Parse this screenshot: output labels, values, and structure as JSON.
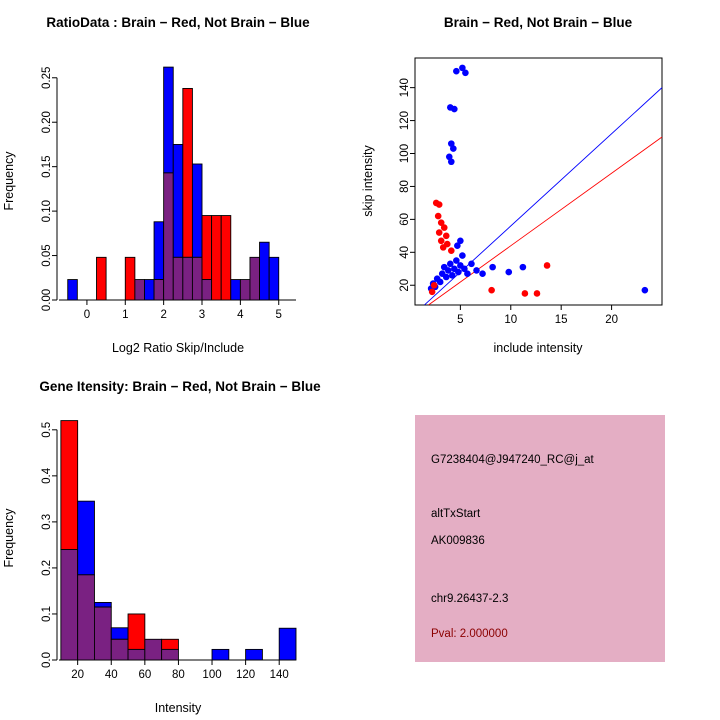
{
  "colors": {
    "red": "#ff0000",
    "blue": "#0000ff",
    "overlap": "#7a2182",
    "axis": "#000000",
    "panel_bg": "#e4aec4",
    "pval_text": "#8b0000"
  },
  "chart_data": [
    {
      "id": "ratio_histogram",
      "type": "bar",
      "title": "RatioData : Brain − Red, Not Brain − Blue",
      "xlabel": "Log2 Ratio Skip/Include",
      "ylabel": "Frequency",
      "legend": [
        {
          "label": "Brain",
          "color": "#ff0000"
        },
        {
          "label": "Not Brain",
          "color": "#0000ff"
        }
      ],
      "xticks": [
        0,
        1,
        2,
        3,
        4,
        5
      ],
      "yticks": [
        0,
        0.05,
        0.1,
        0.15,
        0.2,
        0.25
      ],
      "ytick_labels": [
        "0.00",
        "0.05",
        "0.10",
        "0.15",
        "0.20",
        "0.25"
      ],
      "xlim": [
        -0.78,
        5.45
      ],
      "ylim": [
        0,
        0.27
      ],
      "bin_width": 0.25,
      "bins": [
        {
          "x": -0.5,
          "red": 0,
          "blue": 0.023
        },
        {
          "x": 0.25,
          "red": 0.048,
          "blue": 0
        },
        {
          "x": 1.0,
          "red": 0.048,
          "blue": 0
        },
        {
          "x": 1.25,
          "red": 0.023,
          "blue": 0.023
        },
        {
          "x": 1.5,
          "red": 0,
          "blue": 0.023
        },
        {
          "x": 1.75,
          "red": 0.023,
          "blue": 0.088
        },
        {
          "x": 2.0,
          "red": 0.143,
          "blue": 0.262
        },
        {
          "x": 2.25,
          "red": 0.048,
          "blue": 0.175
        },
        {
          "x": 2.5,
          "red": 0.238,
          "blue": 0.048
        },
        {
          "x": 2.75,
          "red": 0.048,
          "blue": 0.153
        },
        {
          "x": 3.0,
          "red": 0.095,
          "blue": 0.023
        },
        {
          "x": 3.25,
          "red": 0.095,
          "blue": 0
        },
        {
          "x": 3.5,
          "red": 0.095,
          "blue": 0
        },
        {
          "x": 3.75,
          "red": 0,
          "blue": 0.023
        },
        {
          "x": 4.0,
          "red": 0.023,
          "blue": 0.023
        },
        {
          "x": 4.25,
          "red": 0.048,
          "blue": 0.048
        },
        {
          "x": 4.5,
          "red": 0,
          "blue": 0.065
        },
        {
          "x": 4.75,
          "red": 0,
          "blue": 0.048
        }
      ]
    },
    {
      "id": "intensity_scatter",
      "type": "scatter",
      "title": "Brain − Red, Not Brain − Blue",
      "xlabel": "include intensity",
      "ylabel": "skip intensity",
      "xticks": [
        5,
        10,
        15,
        20
      ],
      "yticks": [
        20,
        40,
        60,
        80,
        100,
        120,
        140
      ],
      "xlim": [
        0.5,
        25
      ],
      "ylim": [
        8,
        158
      ],
      "blue_points": [
        [
          4.6,
          150
        ],
        [
          5.2,
          152
        ],
        [
          5.5,
          149
        ],
        [
          4.0,
          128
        ],
        [
          4.4,
          127
        ],
        [
          4.1,
          106
        ],
        [
          4.3,
          103
        ],
        [
          3.9,
          98
        ],
        [
          4.1,
          95
        ],
        [
          2.1,
          18
        ],
        [
          2.3,
          21
        ],
        [
          2.5,
          19
        ],
        [
          2.7,
          24
        ],
        [
          3.0,
          22
        ],
        [
          3.2,
          27
        ],
        [
          3.4,
          31
        ],
        [
          3.6,
          25
        ],
        [
          3.8,
          29
        ],
        [
          4.0,
          33
        ],
        [
          4.2,
          26
        ],
        [
          4.4,
          30
        ],
        [
          4.6,
          35
        ],
        [
          4.8,
          28
        ],
        [
          5.0,
          32
        ],
        [
          5.2,
          38
        ],
        [
          5.4,
          30
        ],
        [
          5.7,
          27
        ],
        [
          6.1,
          33
        ],
        [
          6.6,
          29
        ],
        [
          7.2,
          27
        ],
        [
          4.7,
          44
        ],
        [
          5.0,
          47
        ],
        [
          8.2,
          31
        ],
        [
          9.8,
          28
        ],
        [
          11.2,
          31
        ],
        [
          23.3,
          17
        ]
      ],
      "red_points": [
        [
          2.6,
          70
        ],
        [
          2.9,
          69
        ],
        [
          2.8,
          62
        ],
        [
          3.1,
          58
        ],
        [
          3.4,
          55
        ],
        [
          2.9,
          52
        ],
        [
          3.6,
          50
        ],
        [
          3.1,
          47
        ],
        [
          3.7,
          45
        ],
        [
          3.3,
          43
        ],
        [
          4.1,
          41
        ],
        [
          13.6,
          32
        ],
        [
          8.1,
          17
        ],
        [
          11.4,
          15
        ],
        [
          12.6,
          15
        ],
        [
          2.4,
          20
        ],
        [
          2.2,
          16
        ]
      ],
      "blue_line": [
        [
          1.45,
          8.1
        ],
        [
          25,
          140
        ]
      ],
      "red_line": [
        [
          1.85,
          8.1
        ],
        [
          25,
          110
        ]
      ]
    },
    {
      "id": "gene_intensity_histogram",
      "type": "bar",
      "title": "Gene Itensity: Brain − Red, Not Brain − Blue",
      "xlabel": "Intensity",
      "ylabel": "Frequency",
      "legend": [
        {
          "label": "Brain",
          "color": "#ff0000"
        },
        {
          "label": "Not Brain",
          "color": "#0000ff"
        }
      ],
      "xticks": [
        20,
        40,
        60,
        80,
        100,
        120,
        140
      ],
      "yticks": [
        0,
        0.1,
        0.2,
        0.3,
        0.4,
        0.5
      ],
      "ytick_labels": [
        "0.0",
        "0.1",
        "0.2",
        "0.3",
        "0.4",
        "0.5"
      ],
      "xlim": [
        7.7,
        150
      ],
      "ylim": [
        0,
        0.53
      ],
      "bin_width": 10,
      "bins": [
        {
          "x": 10,
          "red": 0.52,
          "blue": 0.24
        },
        {
          "x": 20,
          "red": 0.185,
          "blue": 0.345
        },
        {
          "x": 30,
          "red": 0.115,
          "blue": 0.125
        },
        {
          "x": 40,
          "red": 0.045,
          "blue": 0.07
        },
        {
          "x": 50,
          "red": 0.1,
          "blue": 0.023
        },
        {
          "x": 60,
          "red": 0.045,
          "blue": 0.045
        },
        {
          "x": 70,
          "red": 0.045,
          "blue": 0.023
        },
        {
          "x": 100,
          "red": 0,
          "blue": 0.023
        },
        {
          "x": 120,
          "red": 0,
          "blue": 0.023
        },
        {
          "x": 140,
          "red": 0,
          "blue": 0.069
        }
      ]
    }
  ],
  "info_panel": {
    "lines": [
      {
        "text": "G7238404@J947240_RC@j_at"
      },
      {
        "text": "altTxStart"
      },
      {
        "text": "AK009836"
      },
      {
        "text": "chr9.26437-2.3"
      },
      {
        "text": "Pval: 2.000000"
      }
    ]
  }
}
